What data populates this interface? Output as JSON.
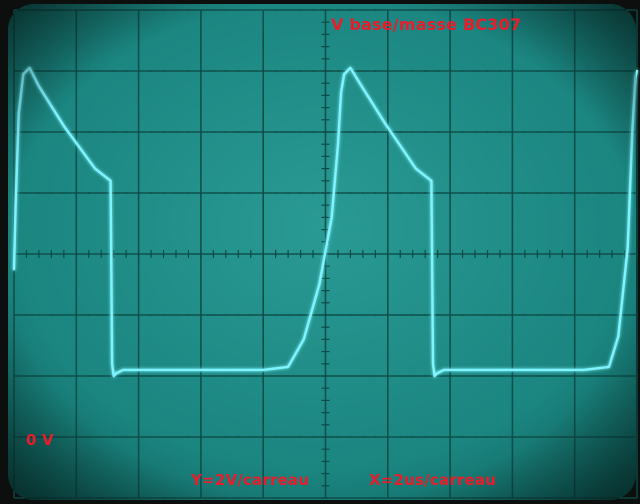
{
  "title": "V base/masse BC307",
  "zero_marker": "0 V",
  "y_scale_label": "Y=2V/carreau",
  "x_scale_label": "X=2us/carreau",
  "colors": {
    "screen": "#1e8a84",
    "grid": "#0d4a46",
    "trace": "#7ff4ff",
    "text": "#e81c2a"
  },
  "chart_data": {
    "type": "line",
    "title": "V base/masse BC307",
    "xlabel": "X=2us/carreau",
    "ylabel": "Y=2V/carreau",
    "x_unit": "us",
    "y_unit": "V",
    "xlim": [
      0,
      20
    ],
    "ylim": [
      0,
      16
    ],
    "grid": true,
    "divisions": {
      "x": 10,
      "y": 8
    },
    "zero_reference": "0 V",
    "series": [
      {
        "values": [
          [
            0.0,
            7.5
          ],
          [
            0.05,
            9.6
          ],
          [
            0.15,
            12.6
          ],
          [
            0.3,
            13.9
          ],
          [
            0.5,
            14.1
          ],
          [
            0.8,
            13.5
          ],
          [
            1.6,
            12.2
          ],
          [
            2.6,
            10.8
          ],
          [
            3.1,
            10.4
          ],
          [
            3.15,
            4.4
          ],
          [
            3.2,
            4.0
          ],
          [
            3.3,
            4.1
          ],
          [
            3.5,
            4.2
          ],
          [
            5.0,
            4.2
          ],
          [
            7.0,
            4.2
          ],
          [
            8.0,
            4.2
          ],
          [
            8.8,
            4.3
          ],
          [
            9.3,
            5.2
          ],
          [
            9.8,
            7.0
          ],
          [
            10.2,
            9.2
          ],
          [
            10.4,
            11.6
          ],
          [
            10.5,
            13.3
          ],
          [
            10.6,
            13.9
          ],
          [
            10.8,
            14.1
          ],
          [
            11.1,
            13.6
          ],
          [
            11.9,
            12.3
          ],
          [
            12.9,
            10.8
          ],
          [
            13.4,
            10.4
          ],
          [
            13.45,
            4.4
          ],
          [
            13.5,
            4.0
          ],
          [
            13.6,
            4.1
          ],
          [
            13.8,
            4.2
          ],
          [
            15.3,
            4.2
          ],
          [
            17.3,
            4.2
          ],
          [
            18.3,
            4.2
          ],
          [
            19.1,
            4.3
          ],
          [
            19.4,
            5.3
          ],
          [
            19.7,
            8.2
          ],
          [
            19.85,
            12.0
          ],
          [
            19.95,
            13.8
          ],
          [
            20.0,
            14.0
          ]
        ]
      }
    ]
  }
}
